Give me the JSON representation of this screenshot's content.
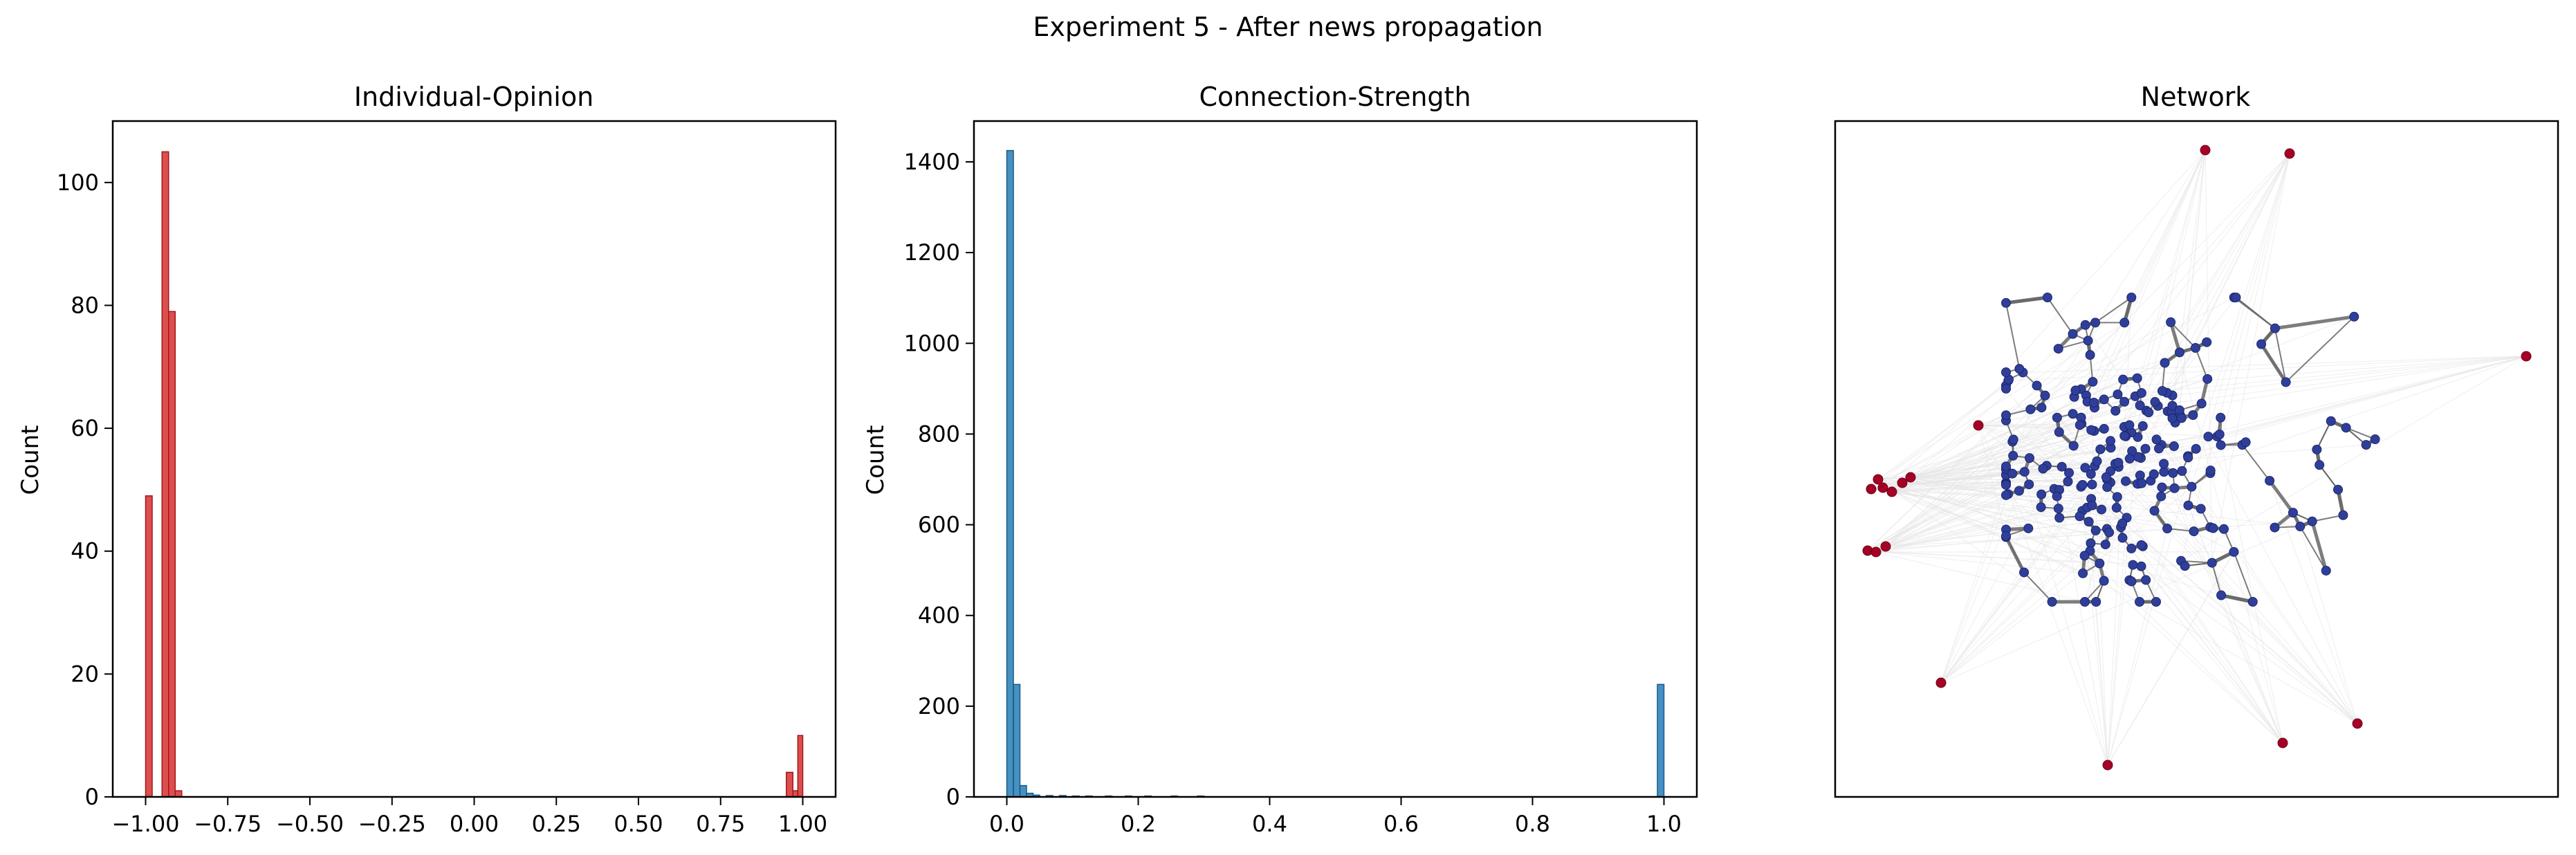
{
  "figure": {
    "suptitle": "Experiment 5 - After news propagation"
  },
  "chart_data": [
    {
      "type": "bar",
      "title": "Individual-Opinion",
      "xlabel": "",
      "ylabel": "Count",
      "color": "#d62728",
      "edge_color": "#a01818",
      "xlim": [
        -1.1,
        1.1
      ],
      "ylim": [
        0,
        110
      ],
      "xticks": [
        -1.0,
        -0.75,
        -0.5,
        -0.25,
        0.0,
        0.25,
        0.5,
        0.75,
        1.0
      ],
      "xtick_labels": [
        "−1.00",
        "−0.75",
        "−0.50",
        "−0.25",
        "0.00",
        "0.25",
        "0.50",
        "0.75",
        "1.00"
      ],
      "yticks": [
        0,
        20,
        40,
        60,
        80,
        100
      ],
      "ytick_labels": [
        "0",
        "20",
        "40",
        "60",
        "80",
        "100"
      ],
      "bins": [
        {
          "x0": -1.0,
          "x1": -0.98,
          "count": 49
        },
        {
          "x0": -0.95,
          "x1": -0.93,
          "count": 105
        },
        {
          "x0": -0.93,
          "x1": -0.91,
          "count": 79
        },
        {
          "x0": -0.91,
          "x1": -0.89,
          "count": 1
        },
        {
          "x0": 0.95,
          "x1": 0.97,
          "count": 4
        },
        {
          "x0": 0.97,
          "x1": 0.985,
          "count": 1
        },
        {
          "x0": 0.985,
          "x1": 1.0,
          "count": 10
        }
      ]
    },
    {
      "type": "bar",
      "title": "Connection-Strength",
      "xlabel": "",
      "ylabel": "Count",
      "color": "#1f77b4",
      "edge_color": "#1a5a88",
      "xlim": [
        -0.05,
        1.05
      ],
      "ylim": [
        0,
        1490
      ],
      "xticks": [
        0.0,
        0.2,
        0.4,
        0.6,
        0.8,
        1.0
      ],
      "xtick_labels": [
        "0.0",
        "0.2",
        "0.4",
        "0.6",
        "0.8",
        "1.0"
      ],
      "yticks": [
        0,
        200,
        400,
        600,
        800,
        1000,
        1200,
        1400
      ],
      "ytick_labels": [
        "0",
        "200",
        "400",
        "600",
        "800",
        "1000",
        "1200",
        "1400"
      ],
      "bins": [
        {
          "x0": 0.0,
          "x1": 0.01,
          "count": 1425
        },
        {
          "x0": 0.01,
          "x1": 0.02,
          "count": 248
        },
        {
          "x0": 0.02,
          "x1": 0.03,
          "count": 25
        },
        {
          "x0": 0.03,
          "x1": 0.04,
          "count": 8
        },
        {
          "x0": 0.04,
          "x1": 0.05,
          "count": 4
        },
        {
          "x0": 0.06,
          "x1": 0.07,
          "count": 3
        },
        {
          "x0": 0.08,
          "x1": 0.09,
          "count": 3
        },
        {
          "x0": 0.1,
          "x1": 0.11,
          "count": 2
        },
        {
          "x0": 0.12,
          "x1": 0.13,
          "count": 2
        },
        {
          "x0": 0.15,
          "x1": 0.16,
          "count": 2
        },
        {
          "x0": 0.18,
          "x1": 0.19,
          "count": 2
        },
        {
          "x0": 0.21,
          "x1": 0.22,
          "count": 2
        },
        {
          "x0": 0.25,
          "x1": 0.26,
          "count": 2
        },
        {
          "x0": 0.29,
          "x1": 0.3,
          "count": 2
        },
        {
          "x0": 0.99,
          "x1": 1.0,
          "count": 248
        }
      ]
    },
    {
      "type": "scatter",
      "title": "Network",
      "node_colors": {
        "cluster": "#2f3f99",
        "outlier": "#a50026"
      },
      "edge_colors": {
        "strong": "#666666",
        "weak": "#e6e6e6"
      },
      "axes_visible": false,
      "ticks": false
    }
  ]
}
